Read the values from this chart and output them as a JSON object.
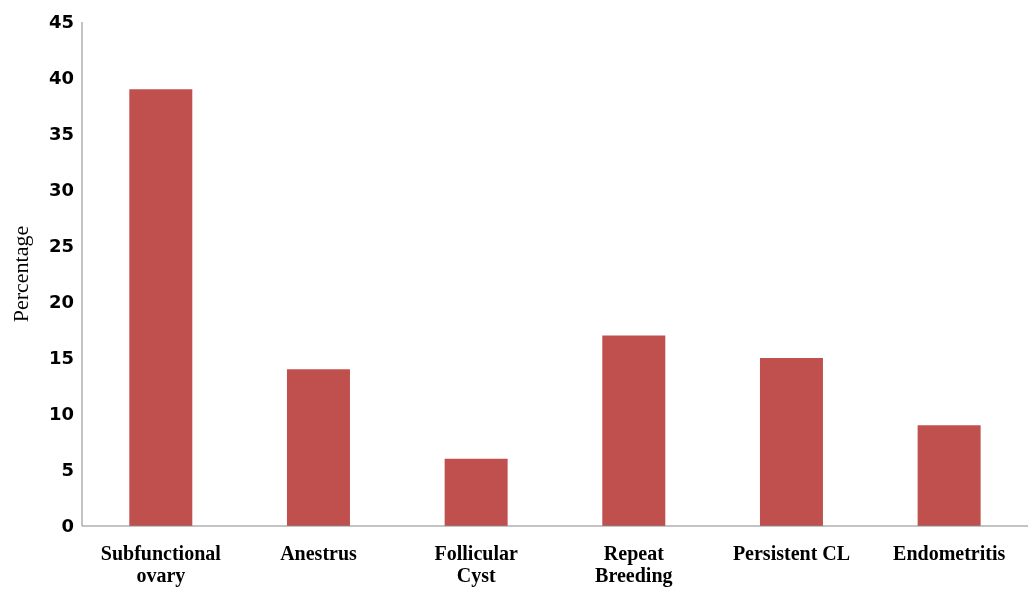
{
  "chart_data": {
    "type": "bar",
    "ylabel": "Percentage",
    "categories": [
      "Subfunctional ovary",
      "Anestrus",
      "Follicular Cyst",
      "Repeat Breeding",
      "Persistent CL",
      "Endometritis"
    ],
    "values": [
      39,
      14,
      6,
      17,
      15,
      9
    ],
    "color": "#c0504d",
    "ylim": [
      0,
      45
    ],
    "yticks": [
      0,
      5,
      10,
      15,
      20,
      25,
      30,
      35,
      40,
      45
    ],
    "grid": false,
    "legend": false
  }
}
